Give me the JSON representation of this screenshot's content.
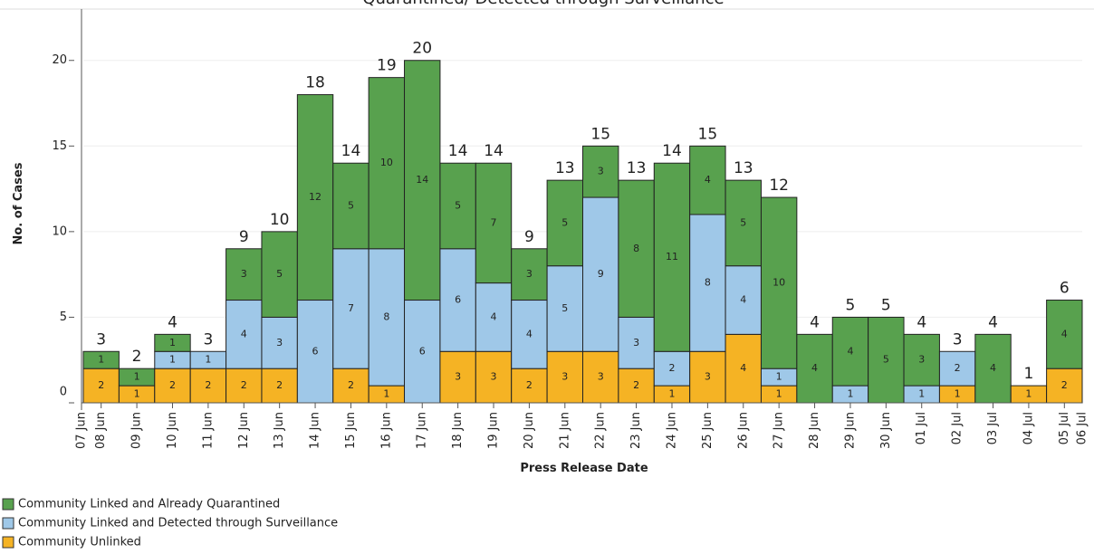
{
  "chart_data": {
    "type": "stacked_bar",
    "title": "Quarantined/ Detected through Surveillance",
    "x_label": "Press Release Date",
    "y_label": "No. of Cases",
    "categories": [
      "08 Jun",
      "09 Jun",
      "10 Jun",
      "11 Jun",
      "12 Jun",
      "13 Jun",
      "14 Jun",
      "15 Jun",
      "16 Jun",
      "17 Jun",
      "18 Jun",
      "19 Jun",
      "20 Jun",
      "21 Jun",
      "22 Jun",
      "23 Jun",
      "24 Jun",
      "25 Jun",
      "26 Jun",
      "27 Jun",
      "28 Jun",
      "29 Jun",
      "30 Jun",
      "01 Jul",
      "02 Jul",
      "03 Jul",
      "04 Jul",
      "05 Jul"
    ],
    "x_axis_end_labels": [
      "07 Jun",
      "06 Jul"
    ],
    "series": [
      {
        "name": "Community Unlinked",
        "color": "#f5b324",
        "values": [
          2,
          1,
          2,
          2,
          2,
          2,
          0,
          2,
          1,
          0,
          3,
          3,
          2,
          3,
          3,
          2,
          1,
          3,
          4,
          1,
          0,
          0,
          0,
          0,
          1,
          0,
          1,
          2
        ]
      },
      {
        "name": "Community Linked and Detected through Surveillance",
        "color": "#9fc8e8",
        "values": [
          0,
          0,
          1,
          1,
          4,
          3,
          6,
          7,
          8,
          6,
          6,
          4,
          4,
          5,
          9,
          3,
          2,
          8,
          4,
          1,
          0,
          1,
          0,
          1,
          2,
          0,
          0,
          0
        ]
      },
      {
        "name": "Community Linked and Already Quarantined",
        "color": "#58a14e",
        "values": [
          1,
          1,
          1,
          0,
          3,
          5,
          12,
          5,
          10,
          14,
          5,
          7,
          3,
          5,
          3,
          8,
          11,
          4,
          5,
          10,
          4,
          4,
          5,
          3,
          0,
          4,
          0,
          4
        ]
      }
    ],
    "totals": [
      3,
      2,
      4,
      3,
      9,
      10,
      18,
      14,
      19,
      20,
      14,
      14,
      9,
      13,
      15,
      13,
      14,
      15,
      13,
      12,
      4,
      5,
      5,
      4,
      3,
      4,
      1,
      6
    ],
    "ylim": [
      0,
      23
    ],
    "yticks": [
      0,
      5,
      10,
      15,
      20
    ],
    "grid": true
  }
}
